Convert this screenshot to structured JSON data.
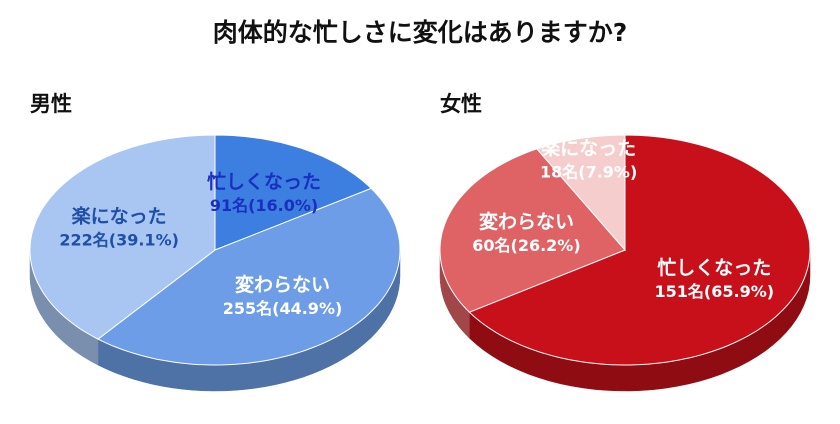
{
  "title": "肉体的な忙しさに変化はありますか?",
  "chart_data": [
    {
      "type": "pie",
      "title": "男性",
      "categories": [
        "忙しくなった",
        "変わらない",
        "楽になった"
      ],
      "values": [
        16.0,
        44.9,
        39.1
      ],
      "value_labels": [
        "91名(16.0%)",
        "255名(44.9%)",
        "222名(39.1%)"
      ],
      "colors": [
        "#3d7fe0",
        "#6d9de6",
        "#a9c5f1"
      ],
      "label_colors": [
        "#1a2fc0",
        "#ffffff",
        "#1f4fa8"
      ]
    },
    {
      "type": "pie",
      "title": "女性",
      "categories": [
        "忙しくなった",
        "変わらない",
        "楽になった"
      ],
      "values": [
        65.9,
        26.2,
        7.9
      ],
      "value_labels": [
        "151名(65.9%)",
        "60名(26.2%)",
        "18名(7.9%)"
      ],
      "colors": [
        "#c8101a",
        "#df6265",
        "#f6cdcd"
      ],
      "label_colors": [
        "#ffffff",
        "#ffffff",
        "#ffffff"
      ]
    }
  ]
}
